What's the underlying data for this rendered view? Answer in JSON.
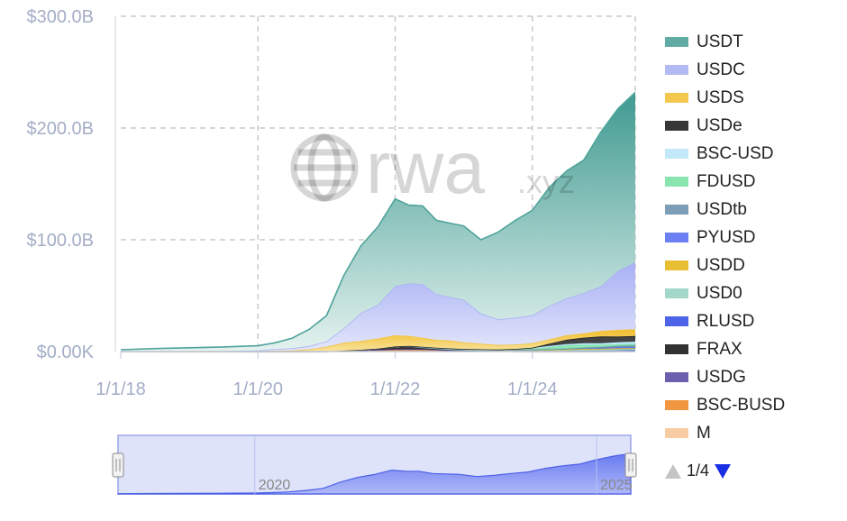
{
  "watermark": {
    "brand": "rwa",
    "suffix": ".xyz"
  },
  "chart_data": {
    "type": "area",
    "stacked": true,
    "y_axis": {
      "ticks": [
        0,
        100,
        200,
        300
      ],
      "tick_labels": [
        "$0.00K",
        "$100.0B",
        "$200.0B",
        "$300.0B"
      ],
      "range": [
        0,
        300
      ],
      "unit": "B USD"
    },
    "x_axis": {
      "ticks": [
        2018,
        2020,
        2022,
        2024
      ],
      "tick_labels": [
        "1/1/18",
        "1/1/20",
        "1/1/22",
        "1/1/24"
      ],
      "range": [
        2018,
        2025.5
      ]
    },
    "grid": true,
    "legend_position": "right",
    "x": [
      2018.0,
      2018.5,
      2019.0,
      2019.5,
      2020.0,
      2020.25,
      2020.5,
      2020.75,
      2021.0,
      2021.25,
      2021.5,
      2021.75,
      2022.0,
      2022.2,
      2022.4,
      2022.6,
      2022.8,
      2023.0,
      2023.25,
      2023.5,
      2023.75,
      2024.0,
      2024.25,
      2024.5,
      2024.75,
      2025.0,
      2025.25,
      2025.5
    ],
    "series": [
      {
        "name": "USDT",
        "color": "#4fa39a",
        "values": [
          1.5,
          2.5,
          3.0,
          3.5,
          4.2,
          5.5,
          9,
          15,
          23,
          47,
          60,
          70,
          78,
          70,
          70,
          66,
          66,
          66,
          66,
          78,
          87,
          94,
          106,
          114,
          119,
          138,
          145,
          152
        ]
      },
      {
        "name": "USDC",
        "color": "#aab2f2",
        "values": [
          0.1,
          0.2,
          0.4,
          0.6,
          0.7,
          1.5,
          2,
          3,
          5,
          13,
          25,
          30,
          44,
          47,
          48,
          41,
          39,
          38,
          27,
          23,
          24,
          25,
          30,
          33,
          36,
          40,
          53,
          60
        ]
      },
      {
        "name": "USDS",
        "color": "#f3c23c",
        "values": [
          0,
          0,
          0,
          0,
          0.3,
          0.8,
          1,
          2,
          4,
          7,
          8,
          9,
          10,
          9,
          8,
          7,
          7,
          6,
          5,
          4,
          4,
          4,
          4,
          4,
          4,
          5,
          6,
          6
        ]
      },
      {
        "name": "USDe",
        "color": "#222222",
        "values": [
          0,
          0,
          0,
          0,
          0,
          0,
          0,
          0,
          0,
          0,
          0,
          0,
          0,
          0,
          0,
          0,
          0,
          0,
          0,
          0,
          0,
          0.2,
          2,
          4,
          5,
          6,
          5,
          5
        ]
      },
      {
        "name": "BSC-USD",
        "color": "#bde6fa",
        "values": [
          0,
          0,
          0,
          0,
          0,
          0,
          0,
          0,
          0,
          0,
          0,
          0,
          0,
          0,
          0,
          0,
          0,
          0,
          0,
          0,
          0,
          0.5,
          1,
          1,
          1.5,
          1.5,
          2,
          2
        ]
      },
      {
        "name": "FDUSD",
        "color": "#7ee2a8",
        "values": [
          0,
          0,
          0,
          0,
          0,
          0,
          0,
          0,
          0,
          0,
          0,
          0,
          0,
          0,
          0,
          0,
          0,
          0,
          0,
          0,
          0.5,
          1,
          2,
          3,
          2.5,
          2,
          1.5,
          1.5
        ]
      },
      {
        "name": "USDtb",
        "color": "#6d93ad",
        "values": [
          0,
          0,
          0,
          0,
          0,
          0,
          0,
          0,
          0,
          0,
          0,
          0,
          0,
          0,
          0,
          0,
          0,
          0,
          0,
          0,
          0,
          0,
          0,
          0,
          0.3,
          0.8,
          1.2,
          1.4
        ]
      },
      {
        "name": "PYUSD",
        "color": "#5c74f2",
        "values": [
          0,
          0,
          0,
          0,
          0,
          0,
          0,
          0,
          0,
          0,
          0,
          0,
          0,
          0,
          0,
          0,
          0,
          0,
          0,
          0,
          0.2,
          0.3,
          0.4,
          0.6,
          0.7,
          0.6,
          0.8,
          0.9
        ]
      },
      {
        "name": "USDD",
        "color": "#e6b91c",
        "values": [
          0,
          0,
          0,
          0,
          0,
          0,
          0,
          0,
          0,
          0,
          0,
          0,
          0,
          0,
          0.5,
          0.7,
          0.7,
          0.7,
          0.7,
          0.7,
          0.7,
          0.7,
          0.7,
          0.7,
          0.7,
          0.7,
          0.7,
          0.7
        ]
      },
      {
        "name": "USD0",
        "color": "#9ad3c3",
        "values": [
          0,
          0,
          0,
          0,
          0,
          0,
          0,
          0,
          0,
          0,
          0,
          0,
          0,
          0,
          0,
          0,
          0,
          0,
          0,
          0,
          0,
          0,
          0.3,
          0.8,
          1.2,
          1.4,
          1.3,
          1.2
        ]
      },
      {
        "name": "RLUSD",
        "color": "#3a53e6",
        "values": [
          0,
          0,
          0,
          0,
          0,
          0,
          0,
          0,
          0,
          0,
          0,
          0,
          0,
          0,
          0,
          0,
          0,
          0,
          0,
          0,
          0,
          0,
          0,
          0,
          0,
          0.1,
          0.3,
          0.5
        ]
      },
      {
        "name": "FRAX",
        "color": "#1c1c1c",
        "values": [
          0,
          0,
          0,
          0,
          0,
          0,
          0,
          0,
          0,
          0.2,
          0.5,
          1.2,
          2.5,
          2.8,
          1.8,
          1.2,
          1.1,
          1.0,
          0.9,
          0.8,
          0.7,
          0.6,
          0.5,
          0.4,
          0.4,
          0.3,
          0.3,
          0.3
        ]
      },
      {
        "name": "USDG",
        "color": "#5d4ea8",
        "values": [
          0,
          0,
          0,
          0,
          0,
          0,
          0,
          0,
          0,
          0,
          0,
          0,
          0,
          0,
          0,
          0,
          0,
          0,
          0,
          0,
          0,
          0,
          0,
          0,
          0,
          0,
          0.1,
          0.2
        ]
      },
      {
        "name": "BSC-BUSD",
        "color": "#ef8b2c",
        "values": [
          0,
          0,
          0,
          0,
          0,
          0,
          0,
          0,
          0.2,
          0.6,
          1,
          1.5,
          2,
          2.2,
          2,
          1.6,
          1,
          0.6,
          0.4,
          0.3,
          0.2,
          0.1,
          0.1,
          0.1,
          0.1,
          0.1,
          0.1,
          0.1
        ]
      },
      {
        "name": "M",
        "color": "#f7c79a",
        "values": [
          0,
          0,
          0,
          0,
          0,
          0,
          0,
          0,
          0,
          0,
          0,
          0,
          0,
          0,
          0,
          0,
          0,
          0,
          0,
          0,
          0,
          0,
          0,
          0,
          0,
          0,
          0.1,
          0.1
        ]
      }
    ],
    "navigator": {
      "labels": [
        "2020",
        "2025"
      ],
      "label_years": [
        2020,
        2025
      ]
    }
  },
  "legend_pager": {
    "text": "1/4"
  }
}
